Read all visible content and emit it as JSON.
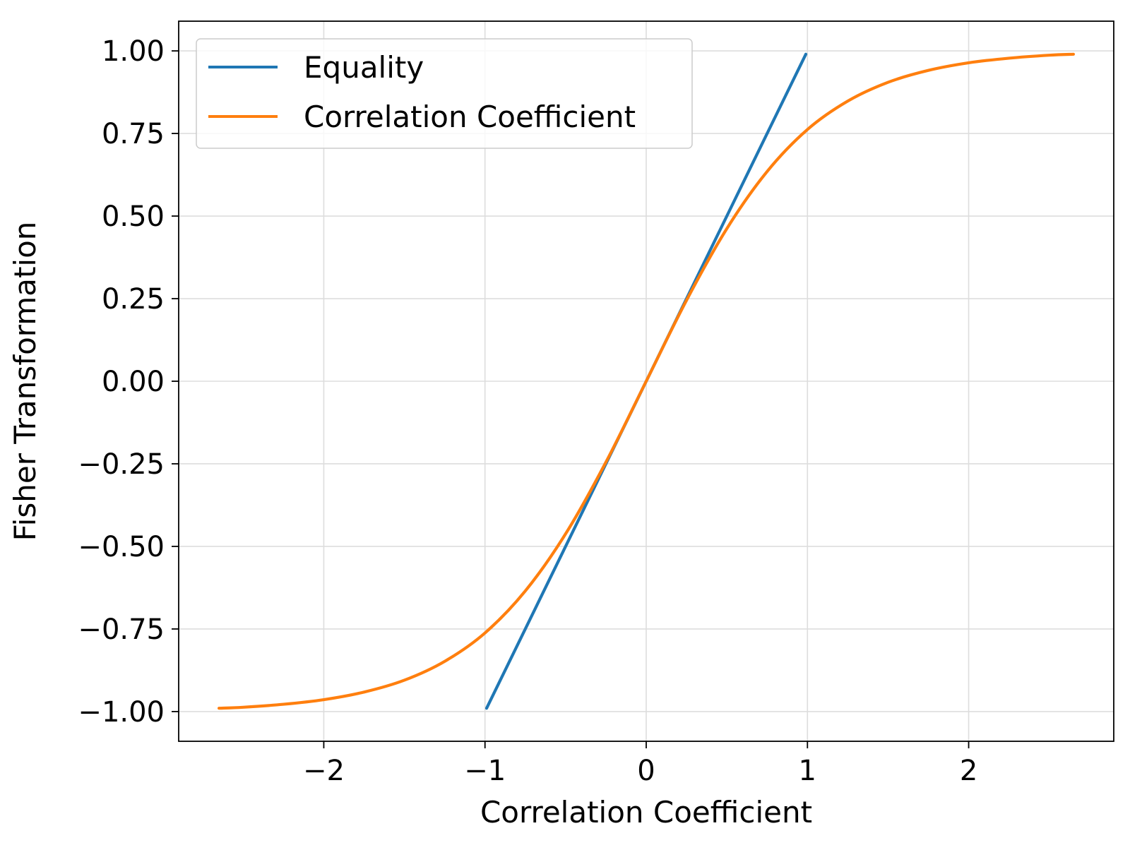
{
  "chart_data": {
    "type": "line",
    "xlabel": "Correlation Coefficient",
    "ylabel": "Fisher Transformation",
    "xlim": [
      -2.9,
      2.9
    ],
    "ylim": [
      -1.09,
      1.09
    ],
    "x_ticks": [
      -2,
      -1,
      0,
      1,
      2
    ],
    "x_tick_labels": [
      "−2",
      "−1",
      "0",
      "1",
      "2"
    ],
    "y_ticks": [
      -1.0,
      -0.75,
      -0.5,
      -0.25,
      0.0,
      0.25,
      0.5,
      0.75,
      1.0
    ],
    "y_tick_labels": [
      "−1.00",
      "−0.75",
      "−0.50",
      "−0.25",
      "0.00",
      "0.25",
      "0.50",
      "0.75",
      "1.00"
    ],
    "grid": true,
    "legend_position": "top-left",
    "series": [
      {
        "name": "Equality",
        "color": "#1f77b4",
        "x": [
          -0.99,
          0.99
        ],
        "y": [
          -0.99,
          0.99
        ]
      },
      {
        "name": "Correlation Coefficient",
        "color": "#ff7f0e",
        "x": [
          -2.65,
          -2.5,
          -2.25,
          -2.0,
          -1.75,
          -1.5,
          -1.25,
          -1.0,
          -0.75,
          -0.5,
          -0.25,
          0.0,
          0.25,
          0.5,
          0.75,
          1.0,
          1.25,
          1.5,
          1.75,
          2.0,
          2.25,
          2.5,
          2.65
        ],
        "y": [
          -0.99,
          -0.987,
          -0.978,
          -0.964,
          -0.941,
          -0.905,
          -0.848,
          -0.762,
          -0.635,
          -0.462,
          -0.245,
          0.0,
          0.245,
          0.462,
          0.635,
          0.762,
          0.848,
          0.905,
          0.941,
          0.964,
          0.978,
          0.987,
          0.99
        ]
      }
    ]
  }
}
